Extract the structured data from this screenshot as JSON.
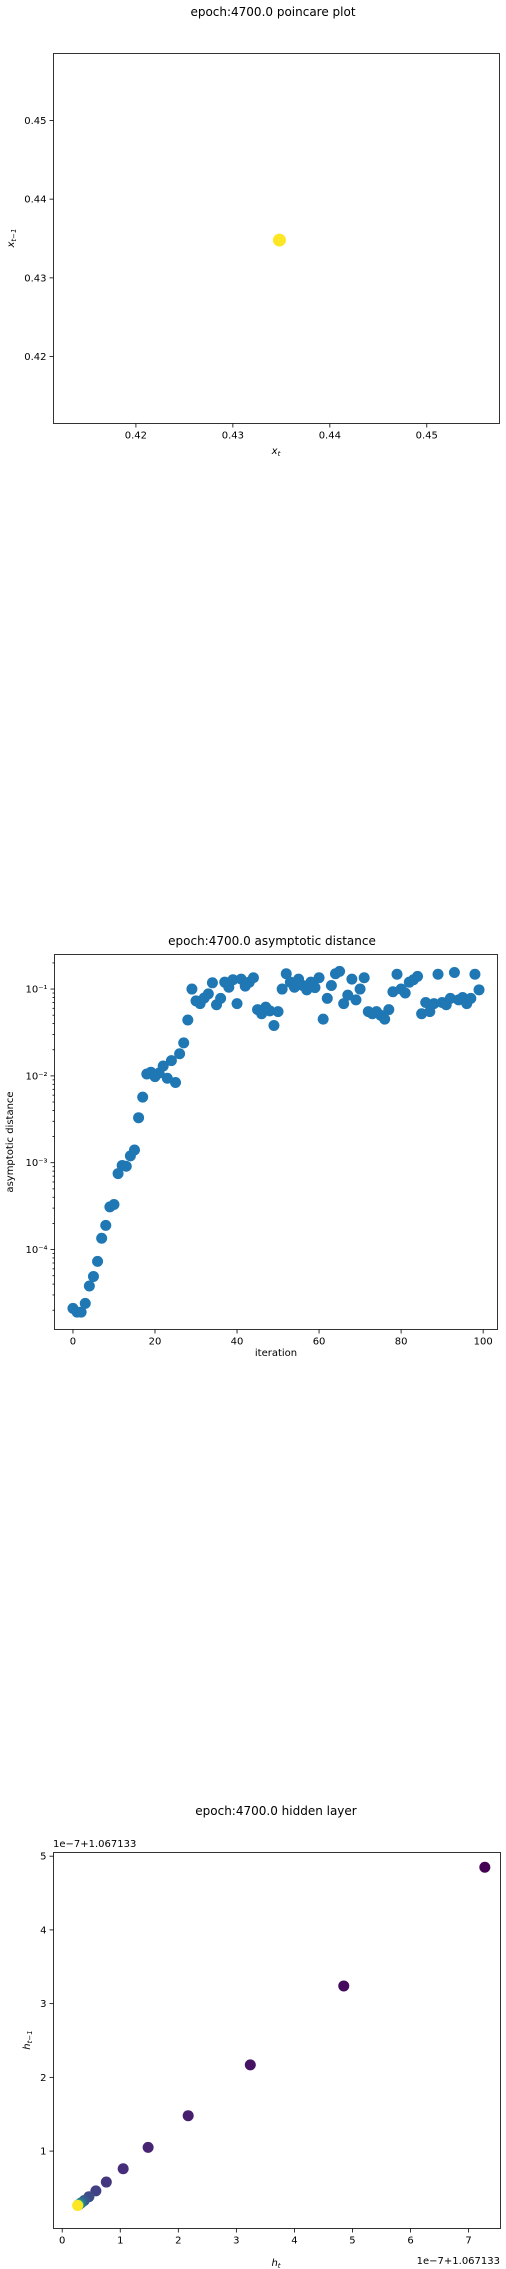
{
  "chart_data": [
    {
      "type": "scatter",
      "title": "epoch:4700.0 poincare plot",
      "xlabel": "x_t",
      "ylabel": "x_{t-1}",
      "xlim": [
        0.4115,
        0.4575
      ],
      "ylim": [
        0.4115,
        0.4585
      ],
      "xticks": [
        0.42,
        0.43,
        0.44,
        0.45
      ],
      "xtick_labels": [
        "0.42",
        "0.43",
        "0.44",
        "0.45"
      ],
      "yticks": [
        0.42,
        0.43,
        0.44,
        0.45
      ],
      "ytick_labels": [
        "0.42",
        "0.43",
        "0.44",
        "0.45"
      ],
      "marker_color": "#fde725",
      "points": [
        [
          0.4348,
          0.4348
        ]
      ]
    },
    {
      "type": "scatter",
      "title": "epoch:4700.0 asymptotic distance",
      "xlabel": "iteration",
      "ylabel": "asymptotic distance",
      "yscale": "log",
      "xlim": [
        -4.5,
        103.5
      ],
      "ylim": [
        1.2e-05,
        0.25
      ],
      "xticks": [
        0,
        20,
        40,
        60,
        80,
        100
      ],
      "xtick_labels": [
        "0",
        "20",
        "40",
        "60",
        "80",
        "100"
      ],
      "yticks": [
        0.0001,
        0.001,
        0.01,
        0.1
      ],
      "ytick_labels": [
        "10⁻⁴",
        "10⁻³",
        "10⁻²",
        "10⁻¹"
      ],
      "marker_color": "#1f77b4",
      "x": [
        0,
        1,
        2,
        3,
        4,
        5,
        6,
        7,
        8,
        9,
        10,
        11,
        12,
        13,
        14,
        15,
        16,
        17,
        18,
        19,
        20,
        21,
        22,
        23,
        24,
        25,
        26,
        27,
        28,
        29,
        30,
        31,
        32,
        33,
        34,
        35,
        36,
        37,
        38,
        39,
        40,
        41,
        42,
        43,
        44,
        45,
        46,
        47,
        48,
        49,
        50,
        51,
        52,
        53,
        54,
        55,
        56,
        57,
        58,
        59,
        60,
        61,
        62,
        63,
        64,
        65,
        66,
        67,
        68,
        69,
        70,
        71,
        72,
        73,
        74,
        75,
        76,
        77,
        78,
        79,
        80,
        81,
        82,
        83,
        84,
        85,
        86,
        87,
        88,
        89,
        90,
        91,
        92,
        93,
        94,
        95,
        96,
        97,
        98,
        99
      ],
      "y": [
        2.1e-05,
        1.9e-05,
        1.9e-05,
        2.4e-05,
        3.8e-05,
        4.9e-05,
        7.3e-05,
        0.000135,
        0.00019,
        0.00031,
        0.00033,
        0.00075,
        0.00093,
        0.00091,
        0.0012,
        0.0014,
        0.0033,
        0.0057,
        0.0105,
        0.011,
        0.0098,
        0.0108,
        0.013,
        0.0094,
        0.015,
        0.0084,
        0.018,
        0.024,
        0.044,
        0.1,
        0.073,
        0.068,
        0.079,
        0.088,
        0.118,
        0.066,
        0.078,
        0.12,
        0.105,
        0.128,
        0.068,
        0.13,
        0.108,
        0.12,
        0.135,
        0.058,
        0.052,
        0.062,
        0.056,
        0.038,
        0.055,
        0.1,
        0.15,
        0.12,
        0.105,
        0.13,
        0.11,
        0.098,
        0.12,
        0.104,
        0.135,
        0.045,
        0.078,
        0.11,
        0.15,
        0.16,
        0.068,
        0.085,
        0.13,
        0.075,
        0.1,
        0.135,
        0.055,
        0.052,
        0.055,
        0.05,
        0.045,
        0.058,
        0.093,
        0.148,
        0.1,
        0.09,
        0.12,
        0.128,
        0.14,
        0.052,
        0.07,
        0.055,
        0.068,
        0.148,
        0.07,
        0.066,
        0.078,
        0.155,
        0.075,
        0.08,
        0.068,
        0.078,
        0.148,
        0.098
      ]
    },
    {
      "type": "scatter",
      "title": "epoch:4700.0 hidden layer",
      "xlabel": "h_t",
      "ylabel": "h_{t-1}",
      "x_offset_label": "1e−7+1.067133",
      "y_offset_label": "1e−7+1.067133",
      "xlim": [
        -0.15,
        7.55
      ],
      "ylim": [
        -0.05,
        5.05
      ],
      "xticks": [
        0,
        1,
        2,
        3,
        4,
        5,
        6,
        7
      ],
      "xtick_labels": [
        "0",
        "1",
        "2",
        "3",
        "4",
        "5",
        "6",
        "7"
      ],
      "yticks": [
        1,
        2,
        3,
        4,
        5
      ],
      "ytick_labels": [
        "1",
        "2",
        "3",
        "4",
        "5"
      ],
      "colormap": "viridis",
      "points": [
        [
          7.28,
          4.85,
          0.0
        ],
        [
          4.85,
          3.24,
          0.03
        ],
        [
          3.24,
          2.17,
          0.05
        ],
        [
          2.17,
          1.48,
          0.08
        ],
        [
          1.48,
          1.05,
          0.1
        ],
        [
          1.05,
          0.76,
          0.13
        ],
        [
          0.76,
          0.58,
          0.16
        ],
        [
          0.58,
          0.46,
          0.19
        ],
        [
          0.46,
          0.38,
          0.23
        ],
        [
          0.38,
          0.33,
          0.28
        ],
        [
          0.33,
          0.3,
          0.35
        ],
        [
          0.3,
          0.28,
          0.45
        ],
        [
          0.28,
          0.27,
          0.6
        ],
        [
          0.27,
          0.265,
          0.8
        ],
        [
          0.265,
          0.262,
          1.0
        ]
      ]
    }
  ]
}
